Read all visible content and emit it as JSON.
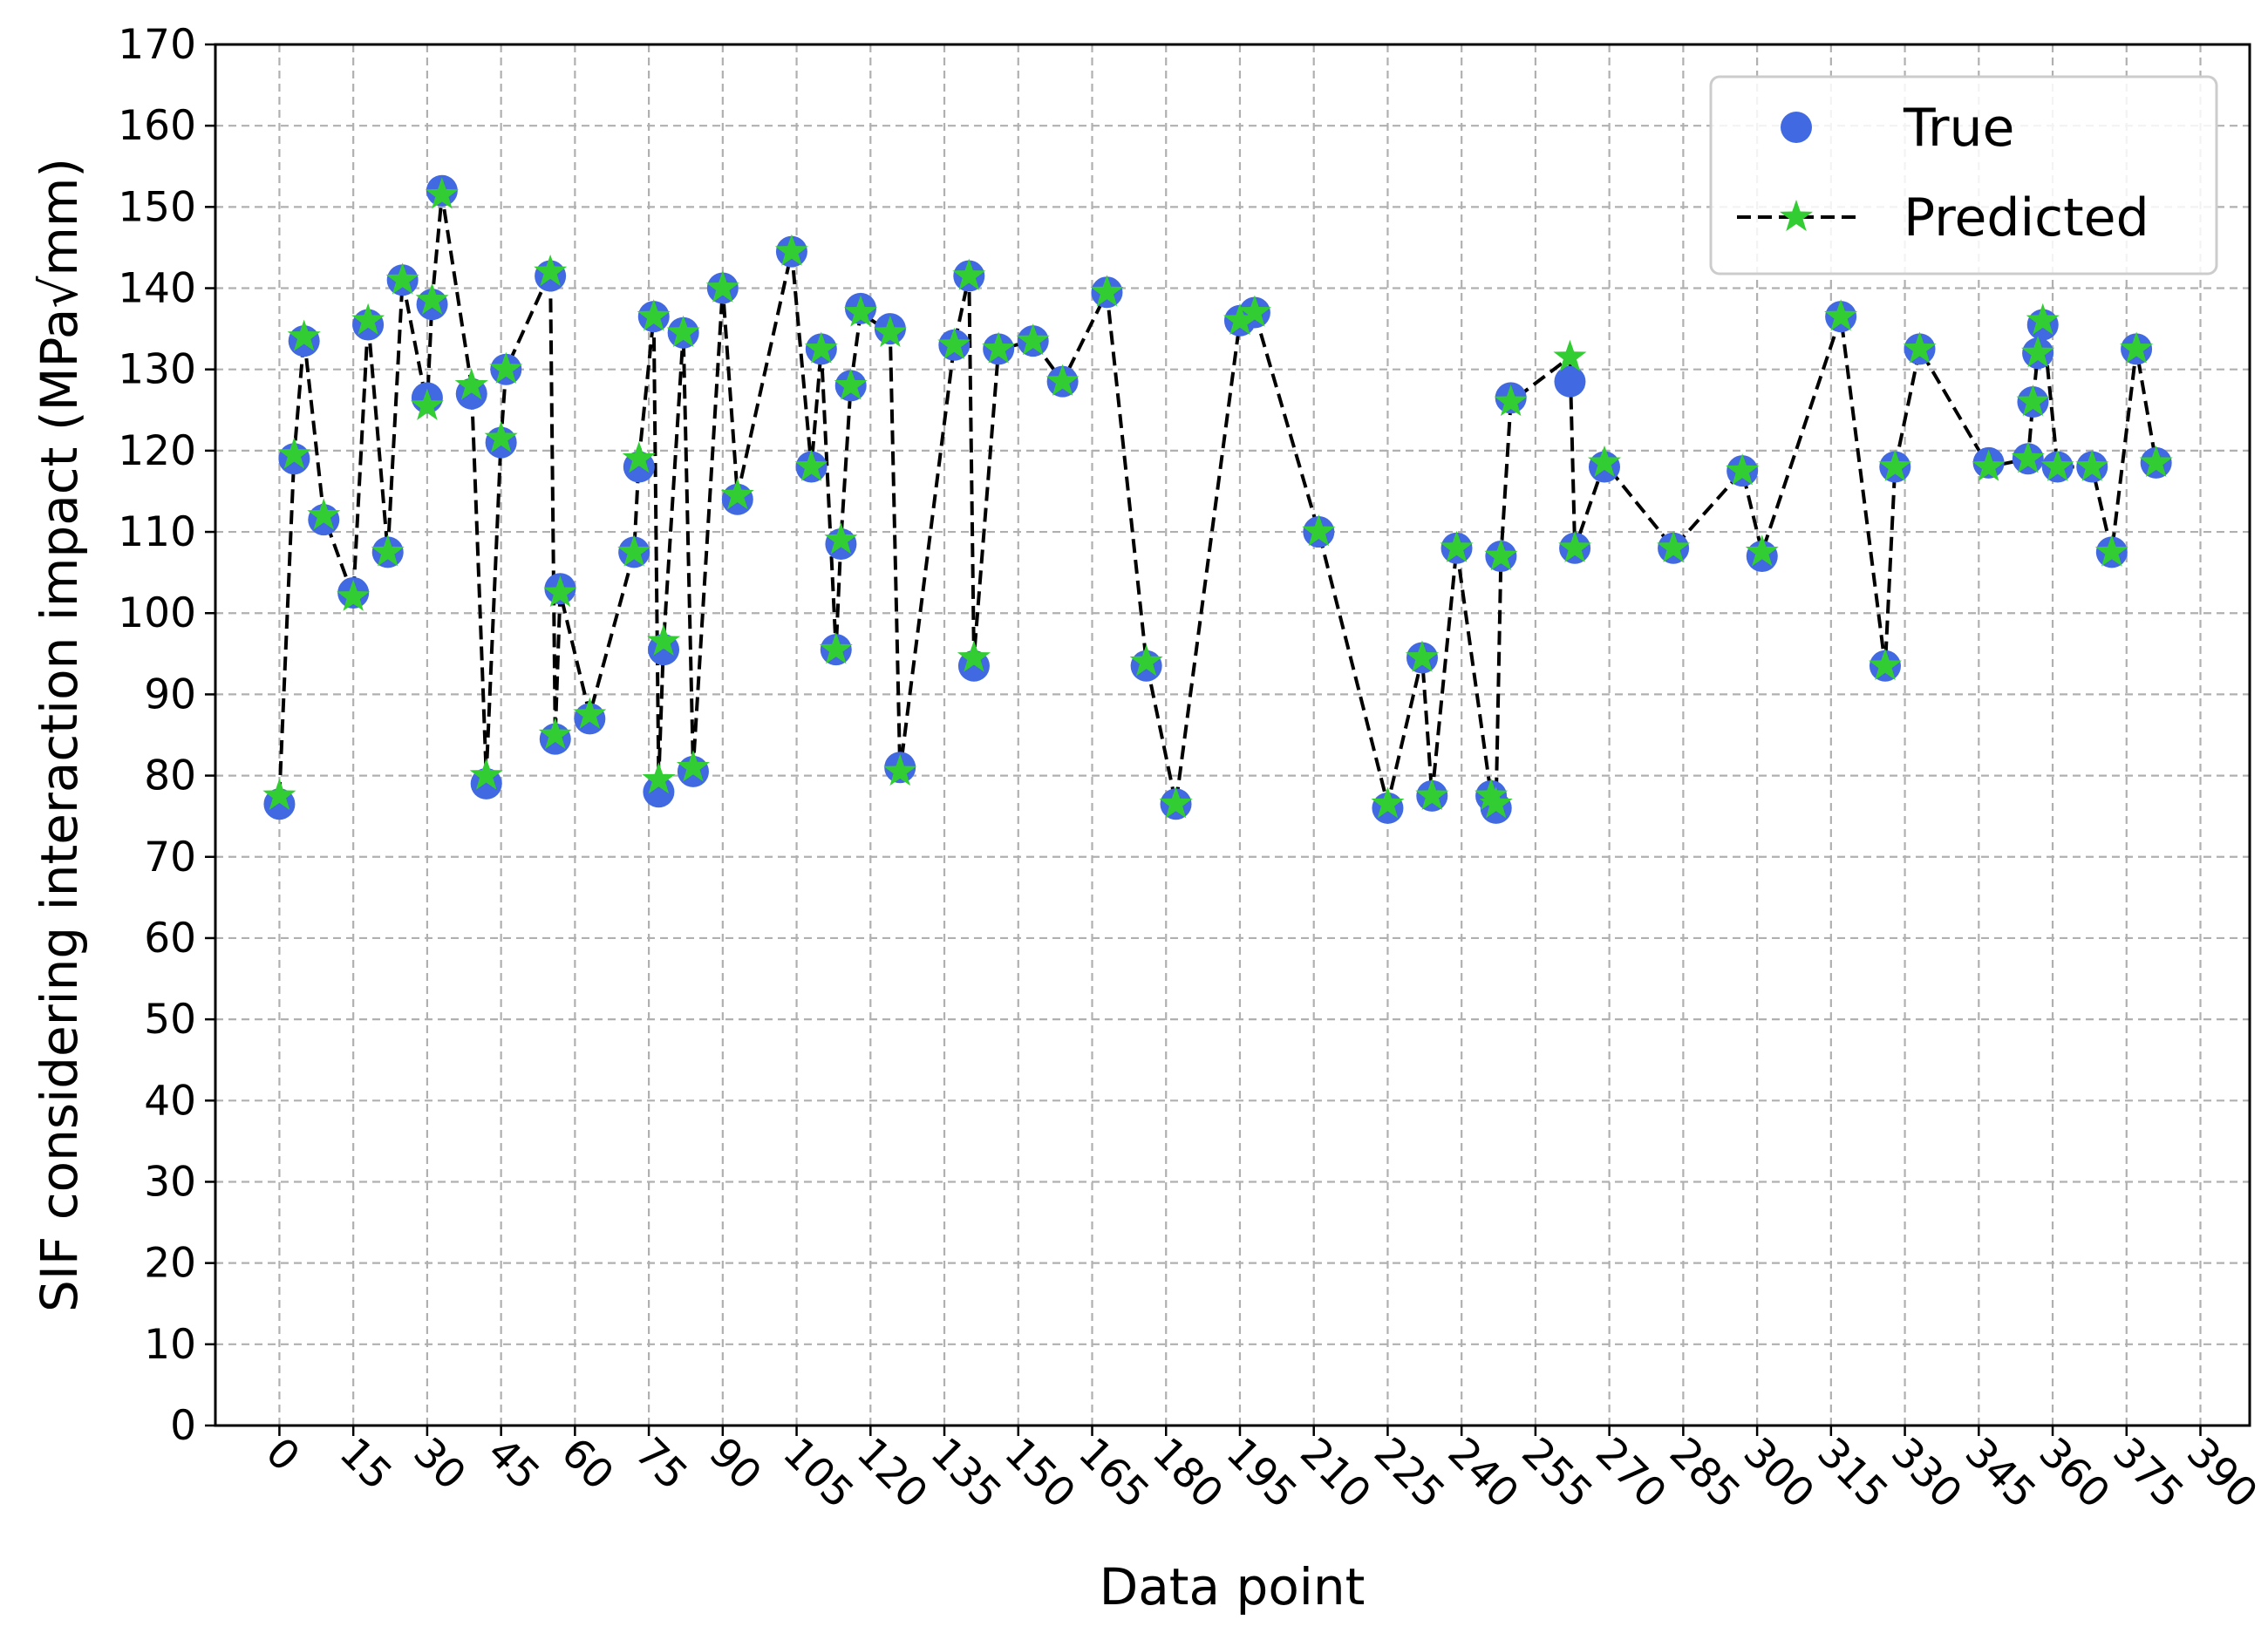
{
  "chart_data": {
    "type": "scatter",
    "xlabel": "Data point",
    "ylabel": "SIF considering interaction impact (MPa√mm)",
    "xlim": [
      -13,
      400
    ],
    "ylim": [
      0,
      170
    ],
    "x_ticks": [
      0,
      15,
      30,
      45,
      60,
      75,
      90,
      105,
      120,
      135,
      150,
      165,
      180,
      195,
      210,
      225,
      240,
      255,
      270,
      285,
      300,
      315,
      330,
      345,
      360,
      375,
      390
    ],
    "y_ticks": [
      0,
      10,
      20,
      30,
      40,
      50,
      60,
      70,
      80,
      90,
      100,
      110,
      120,
      130,
      140,
      150,
      160,
      170
    ],
    "grid": true,
    "legend_position": "top-right",
    "series": [
      {
        "name": "True",
        "style": "markers",
        "marker": "circle",
        "color": "#4169e1",
        "x": [
          0,
          3,
          5,
          9,
          15,
          18,
          22,
          25,
          30,
          31,
          33,
          39,
          42,
          45,
          46,
          55,
          56,
          57,
          63,
          72,
          73,
          76,
          77,
          78,
          82,
          84,
          90,
          93,
          104,
          108,
          110,
          113,
          114,
          116,
          118,
          124,
          126,
          137,
          140,
          141,
          146,
          153,
          159,
          168,
          176,
          182,
          195,
          198,
          211,
          225,
          232,
          234,
          239,
          246,
          247,
          248,
          250,
          262,
          263,
          269,
          283,
          297,
          301,
          317,
          326,
          328,
          333,
          347,
          355,
          356,
          357,
          358,
          361,
          368,
          372,
          377,
          381
        ],
        "values": [
          76.5,
          119,
          133.5,
          111.5,
          102.5,
          135.5,
          107.5,
          141,
          126.5,
          138,
          152,
          127,
          79,
          121,
          130,
          141.5,
          84.5,
          103,
          87,
          107.5,
          118,
          136.5,
          78,
          95.5,
          134.5,
          80.5,
          140,
          114,
          144.5,
          118,
          132.5,
          95.5,
          108.5,
          128,
          137.5,
          135,
          81,
          133,
          141.5,
          93.5,
          132.5,
          133.5,
          128.5,
          139.5,
          93.5,
          76.5,
          136,
          137,
          110,
          76,
          94.5,
          77.5,
          108,
          77.5,
          76,
          107,
          126.5,
          128.5,
          108,
          118,
          108,
          117.5,
          107,
          136.5,
          93.5,
          118,
          132.5,
          118.5,
          119,
          126,
          132,
          135.5,
          118,
          118,
          107.5,
          132.5,
          118.5
        ]
      },
      {
        "name": "Predicted",
        "style": "dashed-line-with-markers",
        "marker": "star",
        "color": "#32cd32",
        "line_color": "#000000",
        "x": [
          0,
          3,
          5,
          9,
          15,
          18,
          22,
          25,
          30,
          31,
          33,
          39,
          42,
          45,
          46,
          55,
          56,
          57,
          63,
          72,
          73,
          76,
          77,
          78,
          82,
          84,
          90,
          93,
          104,
          108,
          110,
          113,
          114,
          116,
          118,
          124,
          126,
          137,
          140,
          141,
          146,
          153,
          159,
          168,
          176,
          182,
          195,
          198,
          211,
          225,
          232,
          234,
          239,
          246,
          247,
          248,
          250,
          262,
          263,
          269,
          283,
          297,
          301,
          317,
          326,
          328,
          333,
          347,
          355,
          356,
          357,
          358,
          361,
          368,
          372,
          377,
          381
        ],
        "values": [
          77.5,
          119.5,
          134,
          112,
          102,
          136,
          107.5,
          141,
          125.5,
          138.5,
          151.5,
          128,
          80,
          121.5,
          130,
          142,
          85,
          102.5,
          87.5,
          107.5,
          119,
          136.5,
          79.5,
          96.5,
          134.5,
          81,
          140,
          114.5,
          144.5,
          118,
          132.5,
          95.5,
          109,
          128,
          137,
          134.5,
          80.5,
          133,
          141.5,
          94.5,
          132.5,
          133.5,
          128.5,
          139.5,
          94,
          76.5,
          136,
          137,
          110,
          76.5,
          94.5,
          77.5,
          108,
          77.5,
          76.5,
          107,
          126,
          131.5,
          108,
          118.5,
          108,
          117.5,
          107.5,
          136.5,
          93.5,
          118,
          132.5,
          118,
          119,
          126,
          132,
          136,
          118,
          118,
          107.5,
          132.5,
          118.5
        ]
      }
    ]
  }
}
